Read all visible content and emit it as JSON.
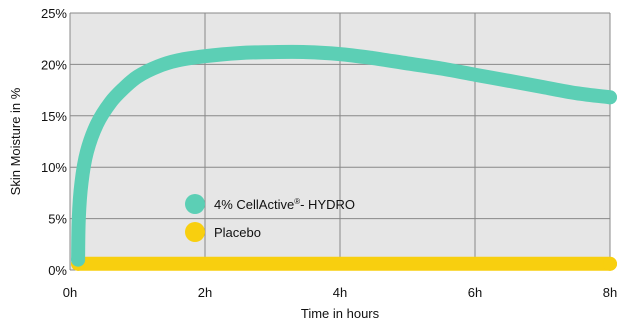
{
  "chart_data": {
    "type": "line",
    "title": "",
    "xlabel": "Time in hours",
    "ylabel": "Skin Moisture in %",
    "xlim": [
      0,
      8
    ],
    "ylim": [
      0,
      25
    ],
    "x_ticks": [
      0,
      2,
      4,
      6,
      8
    ],
    "x_tick_labels": [
      "0h",
      "2h",
      "4h",
      "6h",
      "8h"
    ],
    "y_ticks": [
      0,
      5,
      10,
      15,
      20,
      25
    ],
    "y_tick_labels": [
      "0%",
      "5%",
      "10%",
      "15%",
      "20%",
      "25%"
    ],
    "grid": true,
    "legend_position": "center-left",
    "plot_background": "#e6e6e6",
    "grid_color": "#888888",
    "series": [
      {
        "name": "4% CellActive®- HYDRO",
        "legend_prefix": "4% CellActive",
        "legend_superscript": "®",
        "legend_suffix": "- HYDRO",
        "color": "#5ccfb5",
        "x": [
          0.12,
          0.13,
          0.17,
          0.25,
          0.4,
          0.6,
          0.8,
          1.0,
          1.3,
          1.6,
          2.0,
          2.5,
          3.0,
          3.5,
          4.0,
          4.5,
          5.0,
          5.5,
          6.0,
          6.5,
          7.0,
          7.5,
          8.0
        ],
        "y": [
          1,
          5,
          8.5,
          11.5,
          14.2,
          16.3,
          17.7,
          18.8,
          19.8,
          20.4,
          20.8,
          21.1,
          21.2,
          21.2,
          21.0,
          20.6,
          20.1,
          19.6,
          19.0,
          18.4,
          17.8,
          17.2,
          16.8
        ]
      },
      {
        "name": "Placebo",
        "color": "#f8cf0f",
        "x": [
          0.12,
          8.0
        ],
        "y": [
          0.6,
          0.6
        ]
      }
    ]
  }
}
